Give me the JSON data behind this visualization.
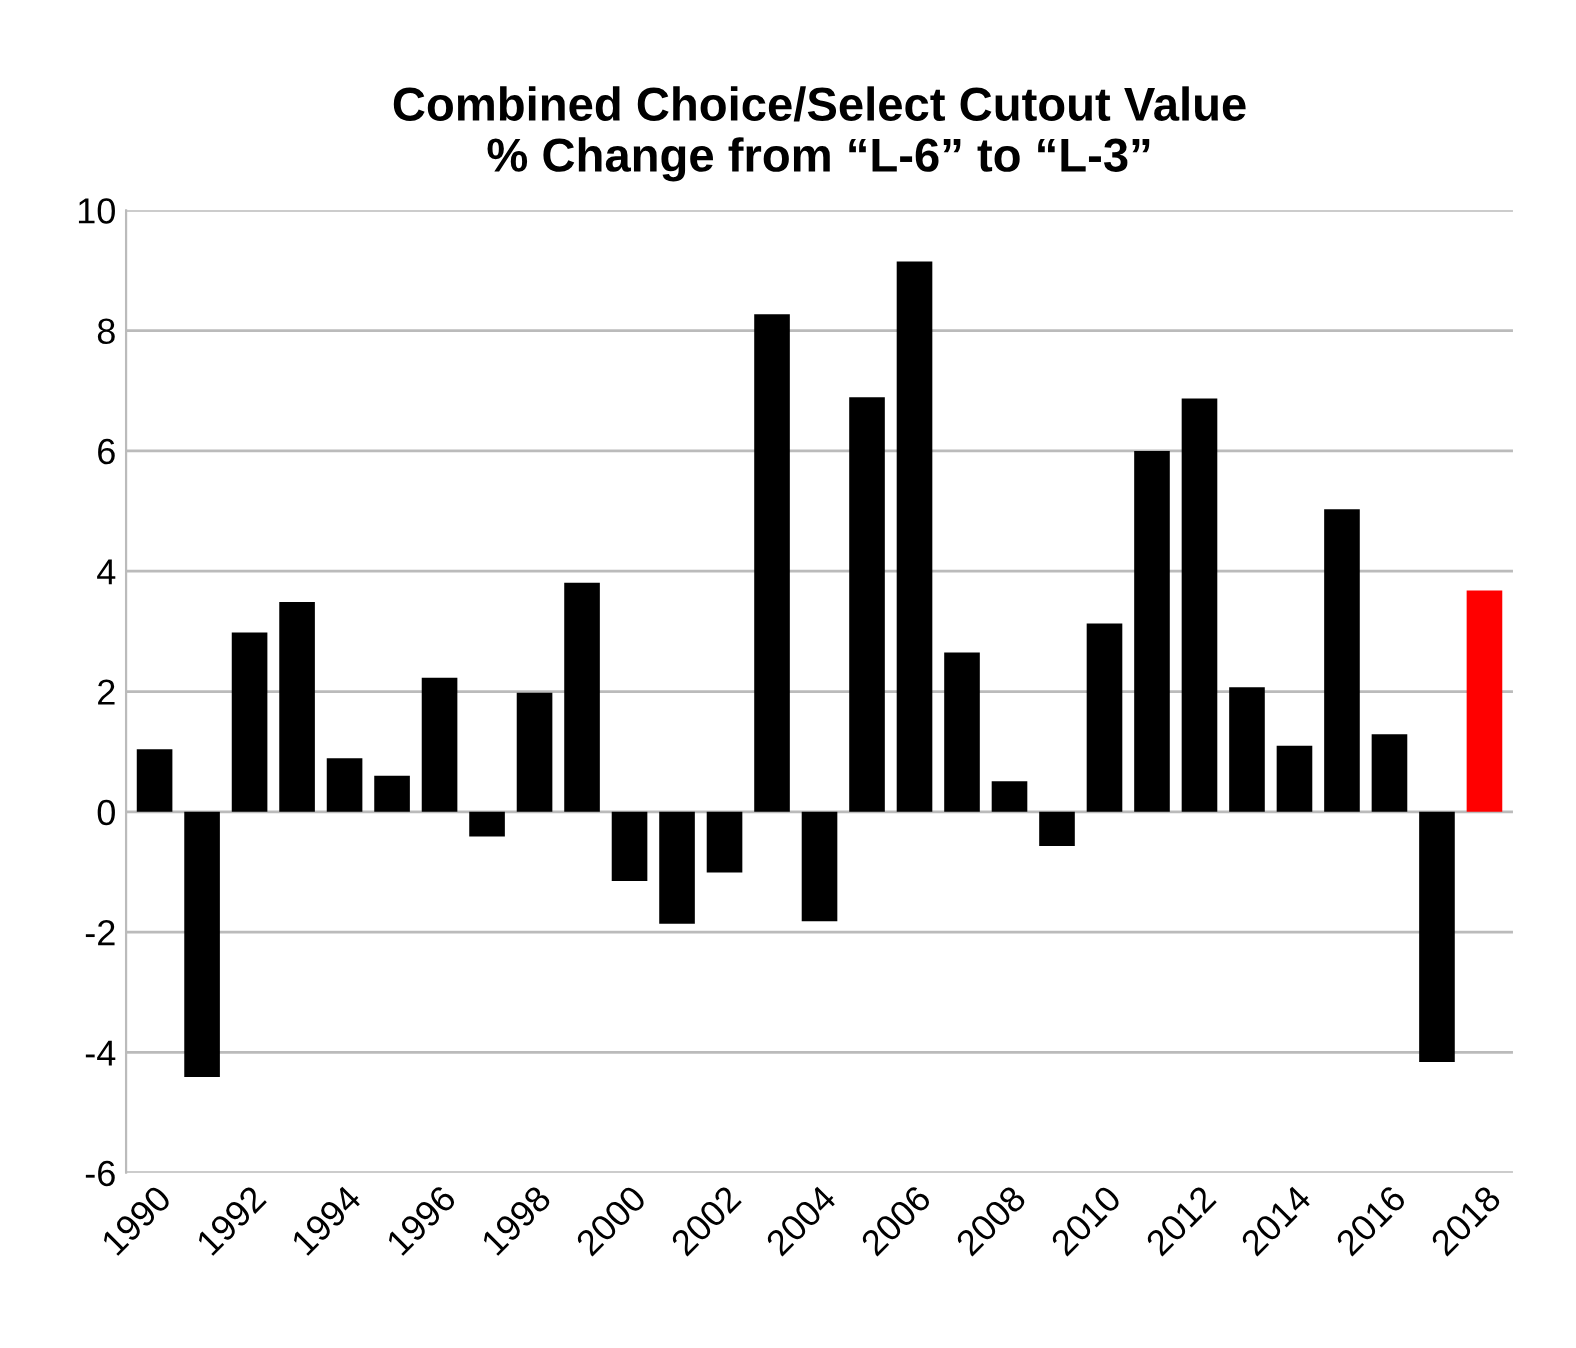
{
  "chart_data": {
    "type": "bar",
    "title": "Combined Choice/Select Cutout Value\n% Change from “L-6” to “L-3”",
    "categories": [
      "1990",
      null,
      "1992",
      null,
      "1994",
      null,
      "1996",
      null,
      "1998",
      null,
      "2000",
      null,
      "2002",
      null,
      "2004",
      null,
      "2006",
      null,
      "2008",
      null,
      "2010",
      null,
      "2012",
      null,
      "2014",
      null,
      "2016",
      null,
      "2018"
    ],
    "values": [
      1.04,
      -4.41,
      2.98,
      3.49,
      0.89,
      0.6,
      2.23,
      -0.41,
      1.98,
      3.81,
      -1.15,
      -1.86,
      -1.01,
      8.27,
      -1.82,
      6.89,
      9.15,
      2.65,
      0.51,
      -0.57,
      3.13,
      6.0,
      6.87,
      2.07,
      1.1,
      5.03,
      1.29,
      -4.16,
      3.68
    ],
    "colors": [
      "#000000",
      "#000000",
      "#000000",
      "#000000",
      "#000000",
      "#000000",
      "#000000",
      "#000000",
      "#000000",
      "#000000",
      "#000000",
      "#000000",
      "#000000",
      "#000000",
      "#000000",
      "#000000",
      "#000000",
      "#000000",
      "#000000",
      "#000000",
      "#000000",
      "#000000",
      "#000000",
      "#000000",
      "#000000",
      "#000000",
      "#000000",
      "#000000",
      "#ff0000"
    ],
    "ylim": [
      -6,
      10
    ],
    "yticks": [
      -6,
      -4,
      -2,
      0,
      2,
      4,
      6,
      8,
      10
    ],
    "grid": "y"
  }
}
